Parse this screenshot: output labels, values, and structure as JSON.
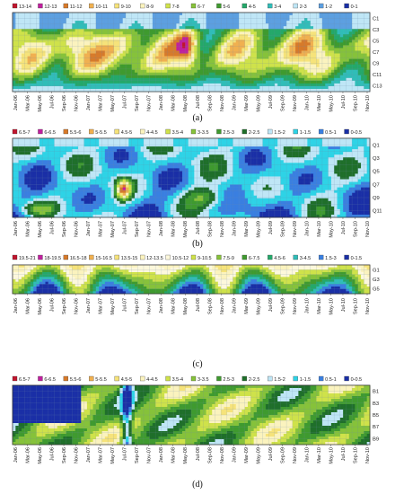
{
  "months": [
    "Jan-06",
    "Mar-06",
    "May-06",
    "Jul-06",
    "Sep-06",
    "Nov-06",
    "Jan-07",
    "Mar-07",
    "May-07",
    "Jul-07",
    "Sep-07",
    "Nov-07",
    "Jan-08",
    "Mar-08",
    "May-08",
    "Jul-08",
    "Sep-08",
    "Nov-08",
    "Jan-09",
    "Mar-09",
    "May-09",
    "Jul-09",
    "Sep-09",
    "Nov-09",
    "Jan-10",
    "Mar-10",
    "May-10",
    "Jul-10",
    "Sep-10",
    "Nov-10"
  ],
  "chart_data": [
    {
      "type": "heatmap",
      "panel_label": "(a)",
      "row_labels": [
        "C1",
        "C3",
        "C5",
        "C7",
        "C9",
        "C11",
        "C13"
      ],
      "legend": [
        {
          "label": "13-14",
          "color": "#c0152d"
        },
        {
          "label": "12-13",
          "color": "#c0209e"
        },
        {
          "label": "11-12",
          "color": "#d77a2a"
        },
        {
          "label": "10-11",
          "color": "#f0b050"
        },
        {
          "label": "9-10",
          "color": "#f6e37a"
        },
        {
          "label": "8-9",
          "color": "#fbf3be"
        },
        {
          "label": "7-8",
          "color": "#cfe24a"
        },
        {
          "label": "6-7",
          "color": "#86c23a"
        },
        {
          "label": "5-6",
          "color": "#3f9a2f"
        },
        {
          "label": "4-5",
          "color": "#24a86a"
        },
        {
          "label": "3-4",
          "color": "#30bdb8"
        },
        {
          "label": "2-3",
          "color": "#bfe6f6"
        },
        {
          "label": "1-2",
          "color": "#5c9fe0"
        },
        {
          "label": "0-1",
          "color": "#1a2fa6"
        }
      ],
      "value_range": [
        0,
        14
      ]
    },
    {
      "type": "heatmap",
      "panel_label": "(b)",
      "row_labels": [
        "Q1",
        "Q3",
        "Q5",
        "Q7",
        "Q9",
        "Q11"
      ],
      "legend": [
        {
          "label": "6.5-7",
          "color": "#c0152d"
        },
        {
          "label": "6-6.5",
          "color": "#c0209e"
        },
        {
          "label": "5.5-6",
          "color": "#d77a2a"
        },
        {
          "label": "5-5.5",
          "color": "#f0b050"
        },
        {
          "label": "4.5-5",
          "color": "#f6e37a"
        },
        {
          "label": "4-4.5",
          "color": "#fbf3be"
        },
        {
          "label": "3.5-4",
          "color": "#cfe24a"
        },
        {
          "label": "3-3.5",
          "color": "#86c23a"
        },
        {
          "label": "2.5-3",
          "color": "#3f9a2f"
        },
        {
          "label": "2-2.5",
          "color": "#1f6f2a"
        },
        {
          "label": "1.5-2",
          "color": "#bfe6f6"
        },
        {
          "label": "1-1.5",
          "color": "#2ed3e6"
        },
        {
          "label": "0.5-1",
          "color": "#3a7fe0"
        },
        {
          "label": "0-0.5",
          "color": "#1a2fa6"
        }
      ],
      "value_range": [
        0,
        7
      ]
    },
    {
      "type": "heatmap",
      "panel_label": "(c)",
      "row_labels": [
        "G1",
        "G3",
        "G5"
      ],
      "legend": [
        {
          "label": "19.5-21",
          "color": "#c0152d"
        },
        {
          "label": "18-19.5",
          "color": "#c0209e"
        },
        {
          "label": "16.5-18",
          "color": "#d77a2a"
        },
        {
          "label": "15-16.5",
          "color": "#f0b050"
        },
        {
          "label": "13.5-15",
          "color": "#f6e37a"
        },
        {
          "label": "12-13.5",
          "color": "#fbf3be"
        },
        {
          "label": "10.5-12",
          "color": "#fdf8dc"
        },
        {
          "label": "9-10.5",
          "color": "#cfe24a"
        },
        {
          "label": "7.5-9",
          "color": "#86c23a"
        },
        {
          "label": "6-7.5",
          "color": "#3f9a2f"
        },
        {
          "label": "4.5-6",
          "color": "#24a86a"
        },
        {
          "label": "3-4.5",
          "color": "#30bdb8"
        },
        {
          "label": "1.5-3",
          "color": "#3a7fe0"
        },
        {
          "label": "0-1.5",
          "color": "#1a2fa6"
        }
      ],
      "value_range": [
        0,
        21
      ]
    },
    {
      "type": "heatmap",
      "panel_label": "(d)",
      "row_labels": [
        "B1",
        "B3",
        "B5",
        "B7",
        "B9"
      ],
      "legend": [
        {
          "label": "6.5-7",
          "color": "#c0152d"
        },
        {
          "label": "6-6.5",
          "color": "#c0209e"
        },
        {
          "label": "5.5-6",
          "color": "#d77a2a"
        },
        {
          "label": "5-5.5",
          "color": "#f0b050"
        },
        {
          "label": "4.5-5",
          "color": "#f6e37a"
        },
        {
          "label": "4-4.5",
          "color": "#fbf3be"
        },
        {
          "label": "3.5-4",
          "color": "#cfe24a"
        },
        {
          "label": "3-3.5",
          "color": "#86c23a"
        },
        {
          "label": "2.5-3",
          "color": "#3f9a2f"
        },
        {
          "label": "2-2.5",
          "color": "#1f6f2a"
        },
        {
          "label": "1.5-2",
          "color": "#bfe6f6"
        },
        {
          "label": "1-1.5",
          "color": "#2ed3e6"
        },
        {
          "label": "0.5-1",
          "color": "#3a7fe0"
        },
        {
          "label": "0-0.5",
          "color": "#1a2fa6"
        }
      ],
      "value_range": [
        0,
        7
      ]
    }
  ]
}
